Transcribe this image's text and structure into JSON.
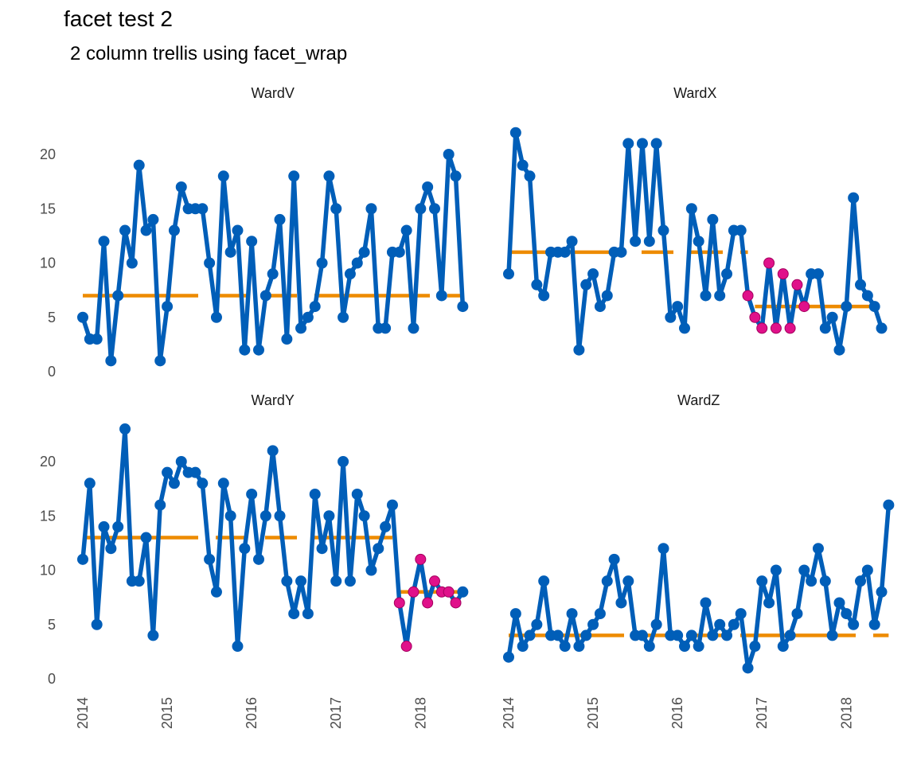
{
  "title": "facet test 2",
  "subtitle": "2 column trellis using facet_wrap",
  "chart_data": {
    "type": "line",
    "layout": "facet_wrap, 2 columns",
    "x_start": "2014-01",
    "x_ticks": [
      "2014",
      "2015",
      "2016",
      "2017",
      "2018"
    ],
    "y_ticks": [
      0,
      5,
      10,
      15,
      20
    ],
    "ylim": [
      0,
      23
    ],
    "colors": {
      "series": "#005EB8",
      "median": "#ED8B00",
      "highlight": "#E0118A"
    },
    "panels": [
      {
        "name": "WardV",
        "values": [
          5,
          3,
          3,
          12,
          1,
          7,
          13,
          10,
          19,
          13,
          14,
          1,
          6,
          13,
          17,
          15,
          15,
          15,
          10,
          5,
          18,
          11,
          13,
          2,
          12,
          2,
          7,
          9,
          14,
          3,
          18,
          4,
          5,
          6,
          10,
          18,
          15,
          5,
          9,
          10,
          11,
          15,
          4,
          4,
          11,
          11,
          13,
          4,
          15,
          17,
          15,
          7,
          20,
          18,
          6
        ],
        "median_segments": [
          {
            "start": 0,
            "end": 54,
            "value": 7
          }
        ],
        "highlight": []
      },
      {
        "name": "WardX",
        "values": [
          9,
          22,
          19,
          18,
          8,
          7,
          11,
          11,
          11,
          12,
          2,
          8,
          9,
          6,
          7,
          11,
          11,
          21,
          12,
          21,
          12,
          21,
          13,
          5,
          6,
          4,
          15,
          12,
          7,
          14,
          7,
          9,
          13,
          13,
          7,
          5,
          4,
          10,
          4,
          9,
          4,
          8,
          6,
          9,
          9,
          4,
          5,
          2,
          6,
          16,
          8,
          7,
          6,
          4
        ],
        "median_segments": [
          {
            "start": 0,
            "end": 34,
            "value": 11
          },
          {
            "start": 35,
            "end": 53,
            "value": 6
          }
        ],
        "highlight": [
          34,
          35,
          36,
          37,
          38,
          39,
          40,
          41,
          42
        ]
      },
      {
        "name": "WardY",
        "values": [
          11,
          18,
          5,
          14,
          12,
          14,
          23,
          9,
          9,
          13,
          4,
          16,
          19,
          18,
          20,
          19,
          19,
          18,
          11,
          8,
          18,
          15,
          3,
          12,
          17,
          11,
          15,
          21,
          15,
          9,
          6,
          9,
          6,
          17,
          12,
          15,
          9,
          20,
          9,
          17,
          15,
          10,
          12,
          14,
          16,
          7,
          3,
          8,
          11,
          7,
          9,
          8,
          8,
          7,
          8
        ],
        "median_segments": [
          {
            "start": 0,
            "end": 44,
            "value": 13
          },
          {
            "start": 45,
            "end": 54,
            "value": 8
          }
        ],
        "highlight": [
          45,
          46,
          47,
          48,
          49,
          50,
          51,
          52,
          53
        ]
      },
      {
        "name": "WardZ",
        "values": [
          2,
          6,
          3,
          4,
          5,
          9,
          4,
          4,
          3,
          6,
          3,
          4,
          5,
          6,
          9,
          11,
          7,
          9,
          4,
          4,
          3,
          5,
          12,
          4,
          4,
          3,
          4,
          3,
          7,
          4,
          5,
          4,
          5,
          6,
          1,
          3,
          9,
          7,
          10,
          3,
          4,
          6,
          10,
          9,
          12,
          9,
          4,
          7,
          6,
          5,
          9,
          10,
          5,
          8,
          16
        ],
        "median_segments": [
          {
            "start": 0,
            "end": 54,
            "value": 4
          }
        ],
        "highlight": []
      }
    ]
  }
}
